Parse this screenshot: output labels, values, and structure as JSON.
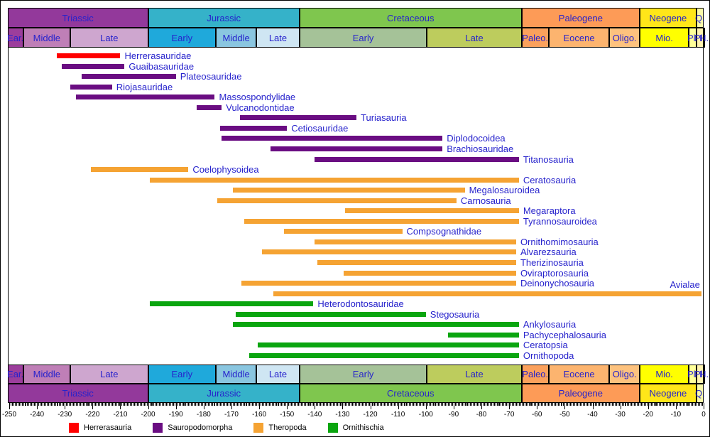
{
  "chart_data": {
    "type": "bar",
    "variant": "horizontal geologic-timeline range chart of dinosaur clades",
    "title": "",
    "xlabel": "",
    "ylabel": "",
    "x_axis": {
      "unit": "Ma",
      "min": -250.6,
      "max": 0,
      "major_tick_step": 10,
      "minor_tick_step": 0.5,
      "tick_labels": [
        "-250",
        "-240",
        "-230",
        "-220",
        "-210",
        "-200",
        "-190",
        "-180",
        "-170",
        "-160",
        "-150",
        "-140",
        "-130",
        "-120",
        "-110",
        "-100",
        "-90",
        "-80",
        "-70",
        "-60",
        "-50",
        "-40",
        "-30",
        "-20",
        "-10",
        "0"
      ]
    },
    "label_color": "#2622CC",
    "periods": [
      {
        "label": "Triassic",
        "start": -250.6,
        "end": -200,
        "color": "#93399B"
      },
      {
        "label": "Jurassic",
        "start": -200,
        "end": -145.5,
        "color": "#35B2C9"
      },
      {
        "label": "Cretaceous",
        "start": -145.5,
        "end": -65.5,
        "color": "#7FC64E"
      },
      {
        "label": "Paleogene",
        "start": -65.5,
        "end": -23,
        "color": "#FD9B57"
      },
      {
        "label": "Neogene",
        "start": -23,
        "end": -2.6,
        "color": "#FFE619"
      },
      {
        "label": "Q.",
        "start": -2.6,
        "end": 0,
        "color": "#FAF9A9"
      }
    ],
    "epochs": [
      {
        "label": "Ear.",
        "start": -250.6,
        "end": -245,
        "color": "#9C3E9C"
      },
      {
        "label": "Middle",
        "start": -245,
        "end": -228,
        "color": "#BF7FB7"
      },
      {
        "label": "Late",
        "start": -228,
        "end": -200,
        "color": "#CEA6CF"
      },
      {
        "label": "Early",
        "start": -200,
        "end": -175.6,
        "color": "#1FA9DB"
      },
      {
        "label": "Middle",
        "start": -175.6,
        "end": -161,
        "color": "#8AC6E0"
      },
      {
        "label": "Late",
        "start": -161,
        "end": -145.5,
        "color": "#CFE6F3"
      },
      {
        "label": "Early",
        "start": -145.5,
        "end": -99.6,
        "color": "#A5C298"
      },
      {
        "label": "Late",
        "start": -99.6,
        "end": -65.5,
        "color": "#BDCC5D"
      },
      {
        "label": "Paleo.",
        "start": -65.5,
        "end": -55.8,
        "color": "#FBA15C"
      },
      {
        "label": "Eocene",
        "start": -55.8,
        "end": -33.9,
        "color": "#FCB46F"
      },
      {
        "label": "Oligo.",
        "start": -33.9,
        "end": -23,
        "color": "#FDC27E"
      },
      {
        "label": "Mio.",
        "start": -23,
        "end": -5.3,
        "color": "#FFFF00"
      },
      {
        "label": "Pl.",
        "start": -5.3,
        "end": -2.6,
        "color": "#FFFF99"
      },
      {
        "label": "Pl.",
        "start": -2.6,
        "end": -0.1,
        "color": "#FFF3B0"
      },
      {
        "label": "H.",
        "start": -0.1,
        "end": 0,
        "color": "#FDF6E3"
      }
    ],
    "groups": {
      "herrerasauria": {
        "label": "Herrerasauria",
        "color": "#FF0000"
      },
      "sauropodomorpha": {
        "label": "Sauropodomorpha",
        "color": "#6A0D82"
      },
      "theropoda": {
        "label": "Theropoda",
        "color": "#F5A333"
      },
      "ornithischia": {
        "label": "Ornithischia",
        "color": "#0AA50F"
      }
    },
    "legend_order": [
      "herrerasauria",
      "sauropodomorpha",
      "theropoda",
      "ornithischia"
    ],
    "taxa": [
      {
        "name": "Herrerasauridae",
        "group": "herrerasauria",
        "start": -233,
        "end": -210
      },
      {
        "name": "Guaibasauridae",
        "group": "sauropodomorpha",
        "start": -231,
        "end": -208.5
      },
      {
        "name": "Plateosauridae",
        "group": "sauropodomorpha",
        "start": -224,
        "end": -190
      },
      {
        "name": "Riojasauridae",
        "group": "sauropodomorpha",
        "start": -228,
        "end": -213
      },
      {
        "name": "Massospondylidae",
        "group": "sauropodomorpha",
        "start": -226,
        "end": -176
      },
      {
        "name": "Vulcanodontidae",
        "group": "sauropodomorpha",
        "start": -182.5,
        "end": -173.5
      },
      {
        "name": "Turiasauria",
        "group": "sauropodomorpha",
        "start": -167,
        "end": -125
      },
      {
        "name": "Cetiosauridae",
        "group": "sauropodomorpha",
        "start": -174,
        "end": -150
      },
      {
        "name": "Diplodocoidea",
        "group": "sauropodomorpha",
        "start": -173.5,
        "end": -94
      },
      {
        "name": "Brachiosauridae",
        "group": "sauropodomorpha",
        "start": -156,
        "end": -94
      },
      {
        "name": "Titanosauria",
        "group": "sauropodomorpha",
        "start": -140,
        "end": -66.5
      },
      {
        "name": "Coelophysoidea",
        "group": "theropoda",
        "start": -220.5,
        "end": -185.5
      },
      {
        "name": "Ceratosauria",
        "group": "theropoda",
        "start": -199.5,
        "end": -66.5
      },
      {
        "name": "Megalosauroidea",
        "group": "theropoda",
        "start": -169.5,
        "end": -86
      },
      {
        "name": "Carnosauria",
        "group": "theropoda",
        "start": -175,
        "end": -89
      },
      {
        "name": "Megaraptora",
        "group": "theropoda",
        "start": -129,
        "end": -66.5
      },
      {
        "name": "Tyrannosauroidea",
        "group": "theropoda",
        "start": -165.5,
        "end": -66.5
      },
      {
        "name": "Compsognathidae",
        "group": "theropoda",
        "start": -151,
        "end": -108.5
      },
      {
        "name": "Ornithomimosauria",
        "group": "theropoda",
        "start": -140,
        "end": -67.5
      },
      {
        "name": "Alvarezsauria",
        "group": "theropoda",
        "start": -159,
        "end": -67.5
      },
      {
        "name": "Therizinosauria",
        "group": "theropoda",
        "start": -139,
        "end": -67.5
      },
      {
        "name": "Oviraptorosauria",
        "group": "theropoda",
        "start": -129.5,
        "end": -67.5
      },
      {
        "name": "Deinonychosauria",
        "group": "theropoda",
        "start": -166.5,
        "end": -67.5
      },
      {
        "name": "Avialae",
        "group": "theropoda",
        "start": -155,
        "end": -0.8,
        "label_position": "above-end"
      },
      {
        "name": "Heterodontosauridae",
        "group": "ornithischia",
        "start": -199.5,
        "end": -140.5
      },
      {
        "name": "Stegosauria",
        "group": "ornithischia",
        "start": -168.5,
        "end": -100
      },
      {
        "name": "Ankylosauria",
        "group": "ornithischia",
        "start": -169.5,
        "end": -66.5
      },
      {
        "name": "Pachycephalosauria",
        "group": "ornithischia",
        "start": -92,
        "end": -66.5
      },
      {
        "name": "Ceratopsia",
        "group": "ornithischia",
        "start": -160.5,
        "end": -66.5
      },
      {
        "name": "Ornithopoda",
        "group": "ornithischia",
        "start": -163.5,
        "end": -66.5
      }
    ]
  }
}
